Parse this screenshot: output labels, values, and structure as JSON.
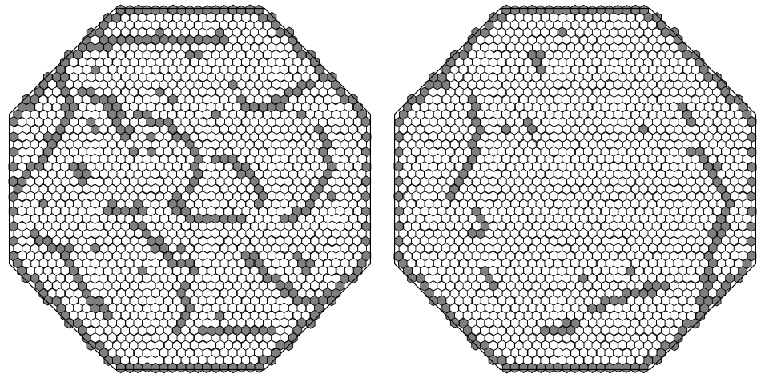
{
  "figure": {
    "panels": [
      {
        "id": "left",
        "defect_density": "high"
      },
      {
        "id": "right",
        "defect_density": "low"
      }
    ],
    "colors": {
      "background": "#ffffff",
      "regular_cell": "#ffffff",
      "defect_cell": "#808080",
      "boundary_cell": "#808080",
      "cell_edge": "#000000"
    },
    "cell_shape": "hexagon",
    "outline_shape": "octagon"
  }
}
